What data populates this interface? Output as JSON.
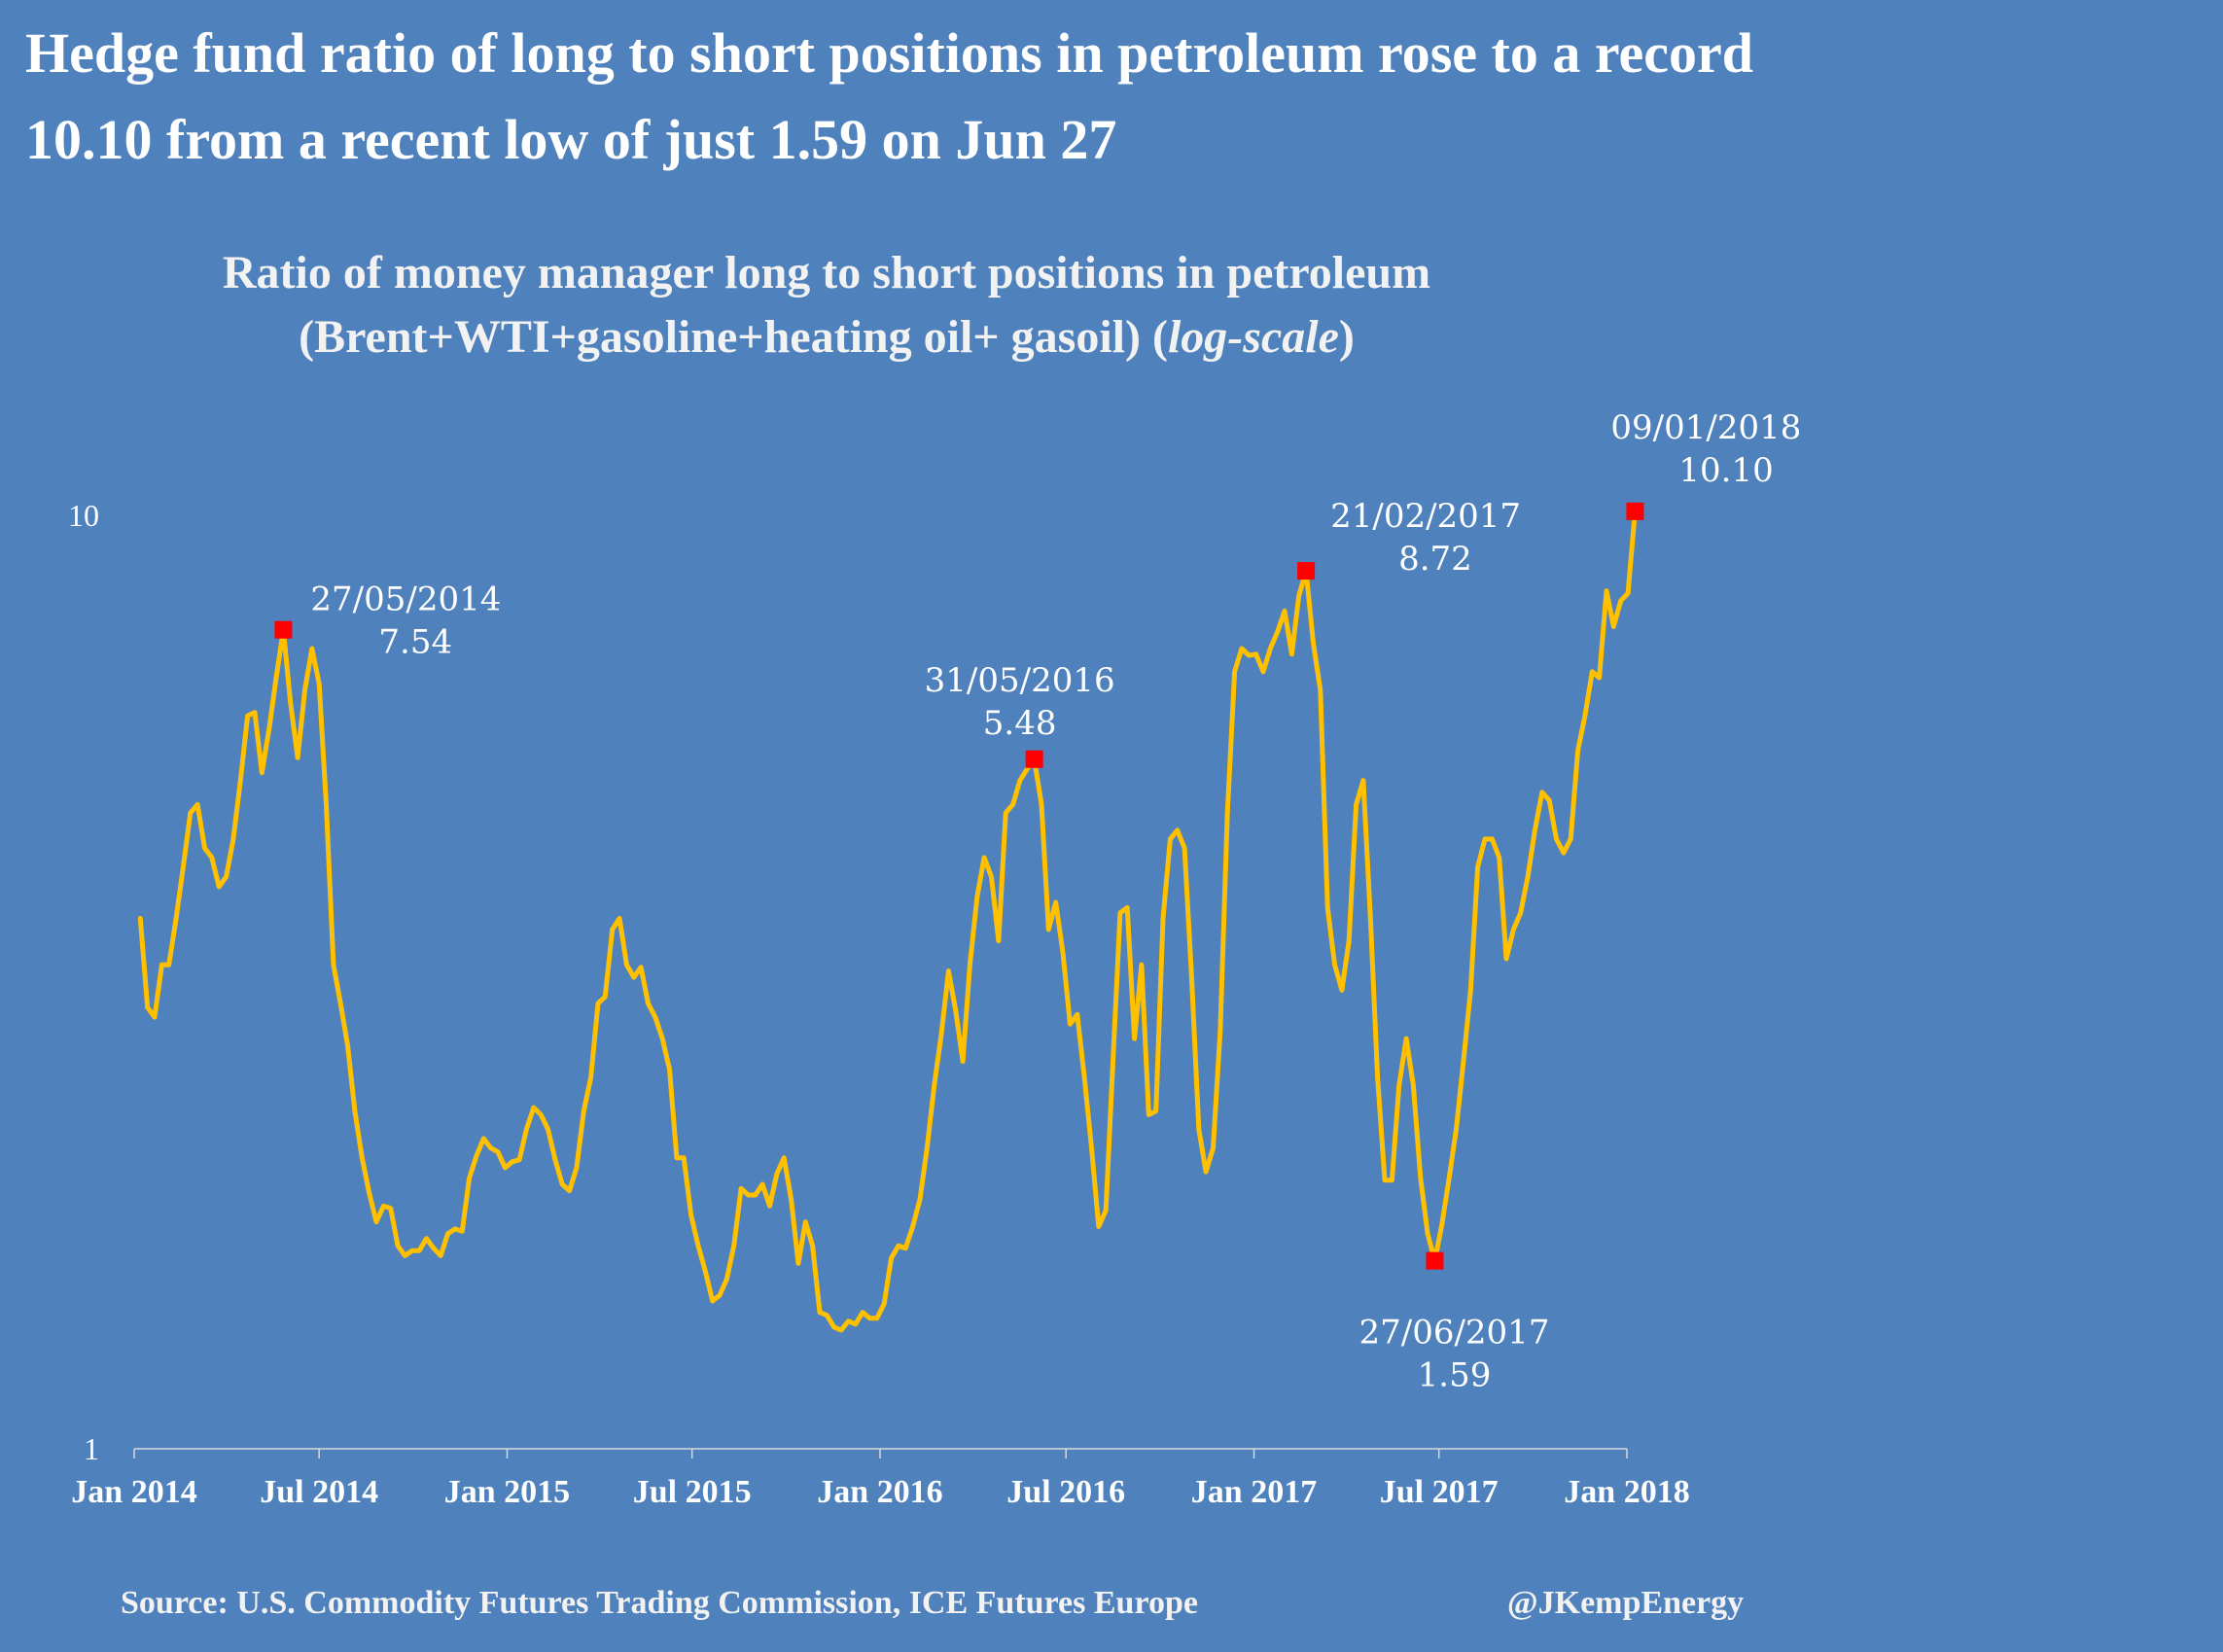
{
  "headline": {
    "line1": "Hedge fund ratio of long to short positions in petroleum rose to a record",
    "line2": "10.10 from a recent low of just 1.59 on Jun 27"
  },
  "footer": {
    "source": "Source: U.S. Commodity Futures Trading Commission, ICE Futures Europe",
    "handle": "@JKempEnergy"
  },
  "colors": {
    "background": "#4f81bd",
    "line": "#ffc000",
    "marker": "#ff0000",
    "text": "#ffffff"
  },
  "chart_data": {
    "type": "line",
    "title_line1": "Ratio of money manager long to short positions in petroleum",
    "title_line2": "(Brent+WTI+gasoline+heating oil+ gasoil) (",
    "title_italic": "log-scale",
    "title_close": ")",
    "yscale": "log",
    "ylim": [
      1,
      10
    ],
    "yticks": [
      {
        "value": 1,
        "label": "1"
      },
      {
        "value": 10,
        "label": "10"
      }
    ],
    "xlim": [
      "2014-01-07",
      "2018-01-09"
    ],
    "xticks": [
      {
        "date": "2014-01-01",
        "label": "Jan 2014"
      },
      {
        "date": "2014-07-01",
        "label": "Jul 2014"
      },
      {
        "date": "2015-01-01",
        "label": "Jan 2015"
      },
      {
        "date": "2015-07-01",
        "label": "Jul 2015"
      },
      {
        "date": "2016-01-01",
        "label": "Jan 2016"
      },
      {
        "date": "2016-07-01",
        "label": "Jul 2016"
      },
      {
        "date": "2017-01-01",
        "label": "Jan 2017"
      },
      {
        "date": "2017-07-01",
        "label": "Jul 2017"
      },
      {
        "date": "2018-01-01",
        "label": "Jan 2018"
      }
    ],
    "grid": false,
    "legend": "none",
    "series": [
      {
        "points": [
          [
            "2014-01-07",
            3.7
          ],
          [
            "2014-01-14",
            2.97
          ],
          [
            "2014-01-21",
            2.9
          ],
          [
            "2014-01-28",
            3.3
          ],
          [
            "2014-02-04",
            3.3
          ],
          [
            "2014-02-11",
            3.7
          ],
          [
            "2014-02-18",
            4.2
          ],
          [
            "2014-02-25",
            4.8
          ],
          [
            "2014-03-04",
            4.9
          ],
          [
            "2014-03-11",
            4.4
          ],
          [
            "2014-03-18",
            4.3
          ],
          [
            "2014-03-25",
            4.0
          ],
          [
            "2014-04-01",
            4.1
          ],
          [
            "2014-04-08",
            4.5
          ],
          [
            "2014-04-15",
            5.2
          ],
          [
            "2014-04-22",
            6.1
          ],
          [
            "2014-04-29",
            6.15
          ],
          [
            "2014-05-06",
            5.3
          ],
          [
            "2014-05-13",
            5.9
          ],
          [
            "2014-05-20",
            6.7
          ],
          [
            "2014-05-27",
            7.54
          ],
          [
            "2014-06-03",
            6.3
          ],
          [
            "2014-06-10",
            5.5
          ],
          [
            "2014-06-17",
            6.5
          ],
          [
            "2014-06-24",
            7.2
          ],
          [
            "2014-07-01",
            6.6
          ],
          [
            "2014-07-08",
            4.9
          ],
          [
            "2014-07-15",
            3.3
          ],
          [
            "2014-07-22",
            3.0
          ],
          [
            "2014-07-29",
            2.7
          ],
          [
            "2014-08-05",
            2.3
          ],
          [
            "2014-08-12",
            2.05
          ],
          [
            "2014-08-19",
            1.88
          ],
          [
            "2014-08-26",
            1.75
          ],
          [
            "2014-09-02",
            1.82
          ],
          [
            "2014-09-09",
            1.81
          ],
          [
            "2014-09-16",
            1.65
          ],
          [
            "2014-09-23",
            1.61
          ],
          [
            "2014-09-30",
            1.63
          ],
          [
            "2014-10-07",
            1.63
          ],
          [
            "2014-10-14",
            1.68
          ],
          [
            "2014-10-21",
            1.64
          ],
          [
            "2014-10-28",
            1.61
          ],
          [
            "2014-11-04",
            1.7
          ],
          [
            "2014-11-11",
            1.72
          ],
          [
            "2014-11-18",
            1.71
          ],
          [
            "2014-11-25",
            1.95
          ],
          [
            "2014-12-02",
            2.06
          ],
          [
            "2014-12-09",
            2.15
          ],
          [
            "2014-12-16",
            2.1
          ],
          [
            "2014-12-23",
            2.08
          ],
          [
            "2014-12-30",
            2.0
          ],
          [
            "2015-01-06",
            2.03
          ],
          [
            "2015-01-13",
            2.04
          ],
          [
            "2015-01-20",
            2.2
          ],
          [
            "2015-01-27",
            2.32
          ],
          [
            "2015-02-03",
            2.28
          ],
          [
            "2015-02-10",
            2.2
          ],
          [
            "2015-02-17",
            2.04
          ],
          [
            "2015-02-24",
            1.92
          ],
          [
            "2015-03-03",
            1.89
          ],
          [
            "2015-03-10",
            2.0
          ],
          [
            "2015-03-17",
            2.3
          ],
          [
            "2015-03-24",
            2.5
          ],
          [
            "2015-03-31",
            3.0
          ],
          [
            "2015-04-07",
            3.05
          ],
          [
            "2015-04-14",
            3.6
          ],
          [
            "2015-04-21",
            3.7
          ],
          [
            "2015-04-28",
            3.3
          ],
          [
            "2015-05-05",
            3.2
          ],
          [
            "2015-05-12",
            3.28
          ],
          [
            "2015-05-19",
            3.0
          ],
          [
            "2015-05-26",
            2.9
          ],
          [
            "2015-06-02",
            2.75
          ],
          [
            "2015-06-09",
            2.55
          ],
          [
            "2015-06-16",
            2.05
          ],
          [
            "2015-06-23",
            2.05
          ],
          [
            "2015-06-30",
            1.78
          ],
          [
            "2015-07-07",
            1.65
          ],
          [
            "2015-07-14",
            1.55
          ],
          [
            "2015-07-21",
            1.44
          ],
          [
            "2015-07-28",
            1.46
          ],
          [
            "2015-08-04",
            1.52
          ],
          [
            "2015-08-11",
            1.65
          ],
          [
            "2015-08-18",
            1.9
          ],
          [
            "2015-08-25",
            1.87
          ],
          [
            "2015-09-01",
            1.87
          ],
          [
            "2015-09-08",
            1.92
          ],
          [
            "2015-09-15",
            1.82
          ],
          [
            "2015-09-22",
            1.97
          ],
          [
            "2015-09-29",
            2.05
          ],
          [
            "2015-10-06",
            1.85
          ],
          [
            "2015-10-13",
            1.58
          ],
          [
            "2015-10-20",
            1.75
          ],
          [
            "2015-10-27",
            1.65
          ],
          [
            "2015-11-03",
            1.4
          ],
          [
            "2015-11-10",
            1.39
          ],
          [
            "2015-11-17",
            1.35
          ],
          [
            "2015-11-24",
            1.34
          ],
          [
            "2015-12-01",
            1.37
          ],
          [
            "2015-12-08",
            1.36
          ],
          [
            "2015-12-15",
            1.4
          ],
          [
            "2015-12-22",
            1.38
          ],
          [
            "2015-12-29",
            1.38
          ],
          [
            "2016-01-05",
            1.43
          ],
          [
            "2016-01-12",
            1.6
          ],
          [
            "2016-01-19",
            1.65
          ],
          [
            "2016-01-26",
            1.64
          ],
          [
            "2016-02-02",
            1.73
          ],
          [
            "2016-02-09",
            1.85
          ],
          [
            "2016-02-16",
            2.1
          ],
          [
            "2016-02-23",
            2.45
          ],
          [
            "2016-03-01",
            2.78
          ],
          [
            "2016-03-08",
            3.25
          ],
          [
            "2016-03-15",
            2.95
          ],
          [
            "2016-03-22",
            2.6
          ],
          [
            "2016-03-29",
            3.3
          ],
          [
            "2016-04-05",
            3.9
          ],
          [
            "2016-04-12",
            4.3
          ],
          [
            "2016-04-19",
            4.1
          ],
          [
            "2016-04-26",
            3.5
          ],
          [
            "2016-05-03",
            4.8
          ],
          [
            "2016-05-10",
            4.9
          ],
          [
            "2016-05-17",
            5.2
          ],
          [
            "2016-05-24",
            5.35
          ],
          [
            "2016-05-31",
            5.48
          ],
          [
            "2016-06-07",
            4.9
          ],
          [
            "2016-06-14",
            3.6
          ],
          [
            "2016-06-21",
            3.85
          ],
          [
            "2016-06-28",
            3.4
          ],
          [
            "2016-07-05",
            2.85
          ],
          [
            "2016-07-12",
            2.92
          ],
          [
            "2016-07-19",
            2.5
          ],
          [
            "2016-07-26",
            2.1
          ],
          [
            "2016-08-02",
            1.73
          ],
          [
            "2016-08-09",
            1.8
          ],
          [
            "2016-08-16",
            2.6
          ],
          [
            "2016-08-23",
            3.75
          ],
          [
            "2016-08-30",
            3.8
          ],
          [
            "2016-09-06",
            2.75
          ],
          [
            "2016-09-13",
            3.3
          ],
          [
            "2016-09-20",
            2.28
          ],
          [
            "2016-09-27",
            2.3
          ],
          [
            "2016-10-04",
            3.7
          ],
          [
            "2016-10-11",
            4.5
          ],
          [
            "2016-10-18",
            4.6
          ],
          [
            "2016-10-25",
            4.4
          ],
          [
            "2016-11-01",
            3.2
          ],
          [
            "2016-11-08",
            2.2
          ],
          [
            "2016-11-15",
            1.98
          ],
          [
            "2016-11-22",
            2.1
          ],
          [
            "2016-11-29",
            2.8
          ],
          [
            "2016-12-06",
            4.8
          ],
          [
            "2016-12-13",
            6.8
          ],
          [
            "2016-12-20",
            7.2
          ],
          [
            "2016-12-27",
            7.08
          ],
          [
            "2017-01-03",
            7.1
          ],
          [
            "2017-01-10",
            6.8
          ],
          [
            "2017-01-17",
            7.2
          ],
          [
            "2017-01-24",
            7.5
          ],
          [
            "2017-01-31",
            7.9
          ],
          [
            "2017-02-07",
            7.1
          ],
          [
            "2017-02-14",
            8.2
          ],
          [
            "2017-02-21",
            8.72
          ],
          [
            "2017-02-28",
            7.3
          ],
          [
            "2017-03-07",
            6.5
          ],
          [
            "2017-03-14",
            3.8
          ],
          [
            "2017-03-21",
            3.3
          ],
          [
            "2017-03-28",
            3.1
          ],
          [
            "2017-04-04",
            3.5
          ],
          [
            "2017-04-11",
            4.9
          ],
          [
            "2017-04-18",
            5.2
          ],
          [
            "2017-04-25",
            3.7
          ],
          [
            "2017-05-02",
            2.5
          ],
          [
            "2017-05-09",
            1.94
          ],
          [
            "2017-05-16",
            1.94
          ],
          [
            "2017-05-23",
            2.45
          ],
          [
            "2017-05-30",
            2.75
          ],
          [
            "2017-06-06",
            2.45
          ],
          [
            "2017-06-13",
            1.95
          ],
          [
            "2017-06-20",
            1.7
          ],
          [
            "2017-06-27",
            1.59
          ],
          [
            "2017-07-04",
            1.74
          ],
          [
            "2017-07-11",
            1.95
          ],
          [
            "2017-07-18",
            2.2
          ],
          [
            "2017-07-25",
            2.6
          ],
          [
            "2017-08-01",
            3.1
          ],
          [
            "2017-08-08",
            4.2
          ],
          [
            "2017-08-15",
            4.5
          ],
          [
            "2017-08-22",
            4.5
          ],
          [
            "2017-08-29",
            4.3
          ],
          [
            "2017-09-05",
            3.35
          ],
          [
            "2017-09-12",
            3.6
          ],
          [
            "2017-09-19",
            3.75
          ],
          [
            "2017-09-26",
            4.1
          ],
          [
            "2017-10-03",
            4.6
          ],
          [
            "2017-10-10",
            5.05
          ],
          [
            "2017-10-17",
            4.95
          ],
          [
            "2017-10-24",
            4.5
          ],
          [
            "2017-10-31",
            4.35
          ],
          [
            "2017-11-07",
            4.5
          ],
          [
            "2017-11-14",
            5.6
          ],
          [
            "2017-11-21",
            6.1
          ],
          [
            "2017-11-28",
            6.8
          ],
          [
            "2017-12-05",
            6.7
          ],
          [
            "2017-12-12",
            8.3
          ],
          [
            "2017-12-19",
            7.6
          ],
          [
            "2017-12-26",
            8.1
          ],
          [
            "2018-01-02",
            8.25
          ],
          [
            "2018-01-09",
            10.1
          ]
        ]
      }
    ],
    "annotations": [
      {
        "date": "2014-05-27",
        "value": 7.54,
        "date_label": "27/05/2014",
        "value_label": "7.54"
      },
      {
        "date": "2016-05-31",
        "value": 5.48,
        "date_label": "31/05/2016",
        "value_label": "5.48"
      },
      {
        "date": "2017-02-21",
        "value": 8.72,
        "date_label": "21/02/2017",
        "value_label": "8.72"
      },
      {
        "date": "2017-06-27",
        "value": 1.59,
        "date_label": "27/06/2017",
        "value_label": "1.59"
      },
      {
        "date": "2018-01-09",
        "value": 10.1,
        "date_label": "09/01/2018",
        "value_label": "10.10"
      }
    ]
  }
}
